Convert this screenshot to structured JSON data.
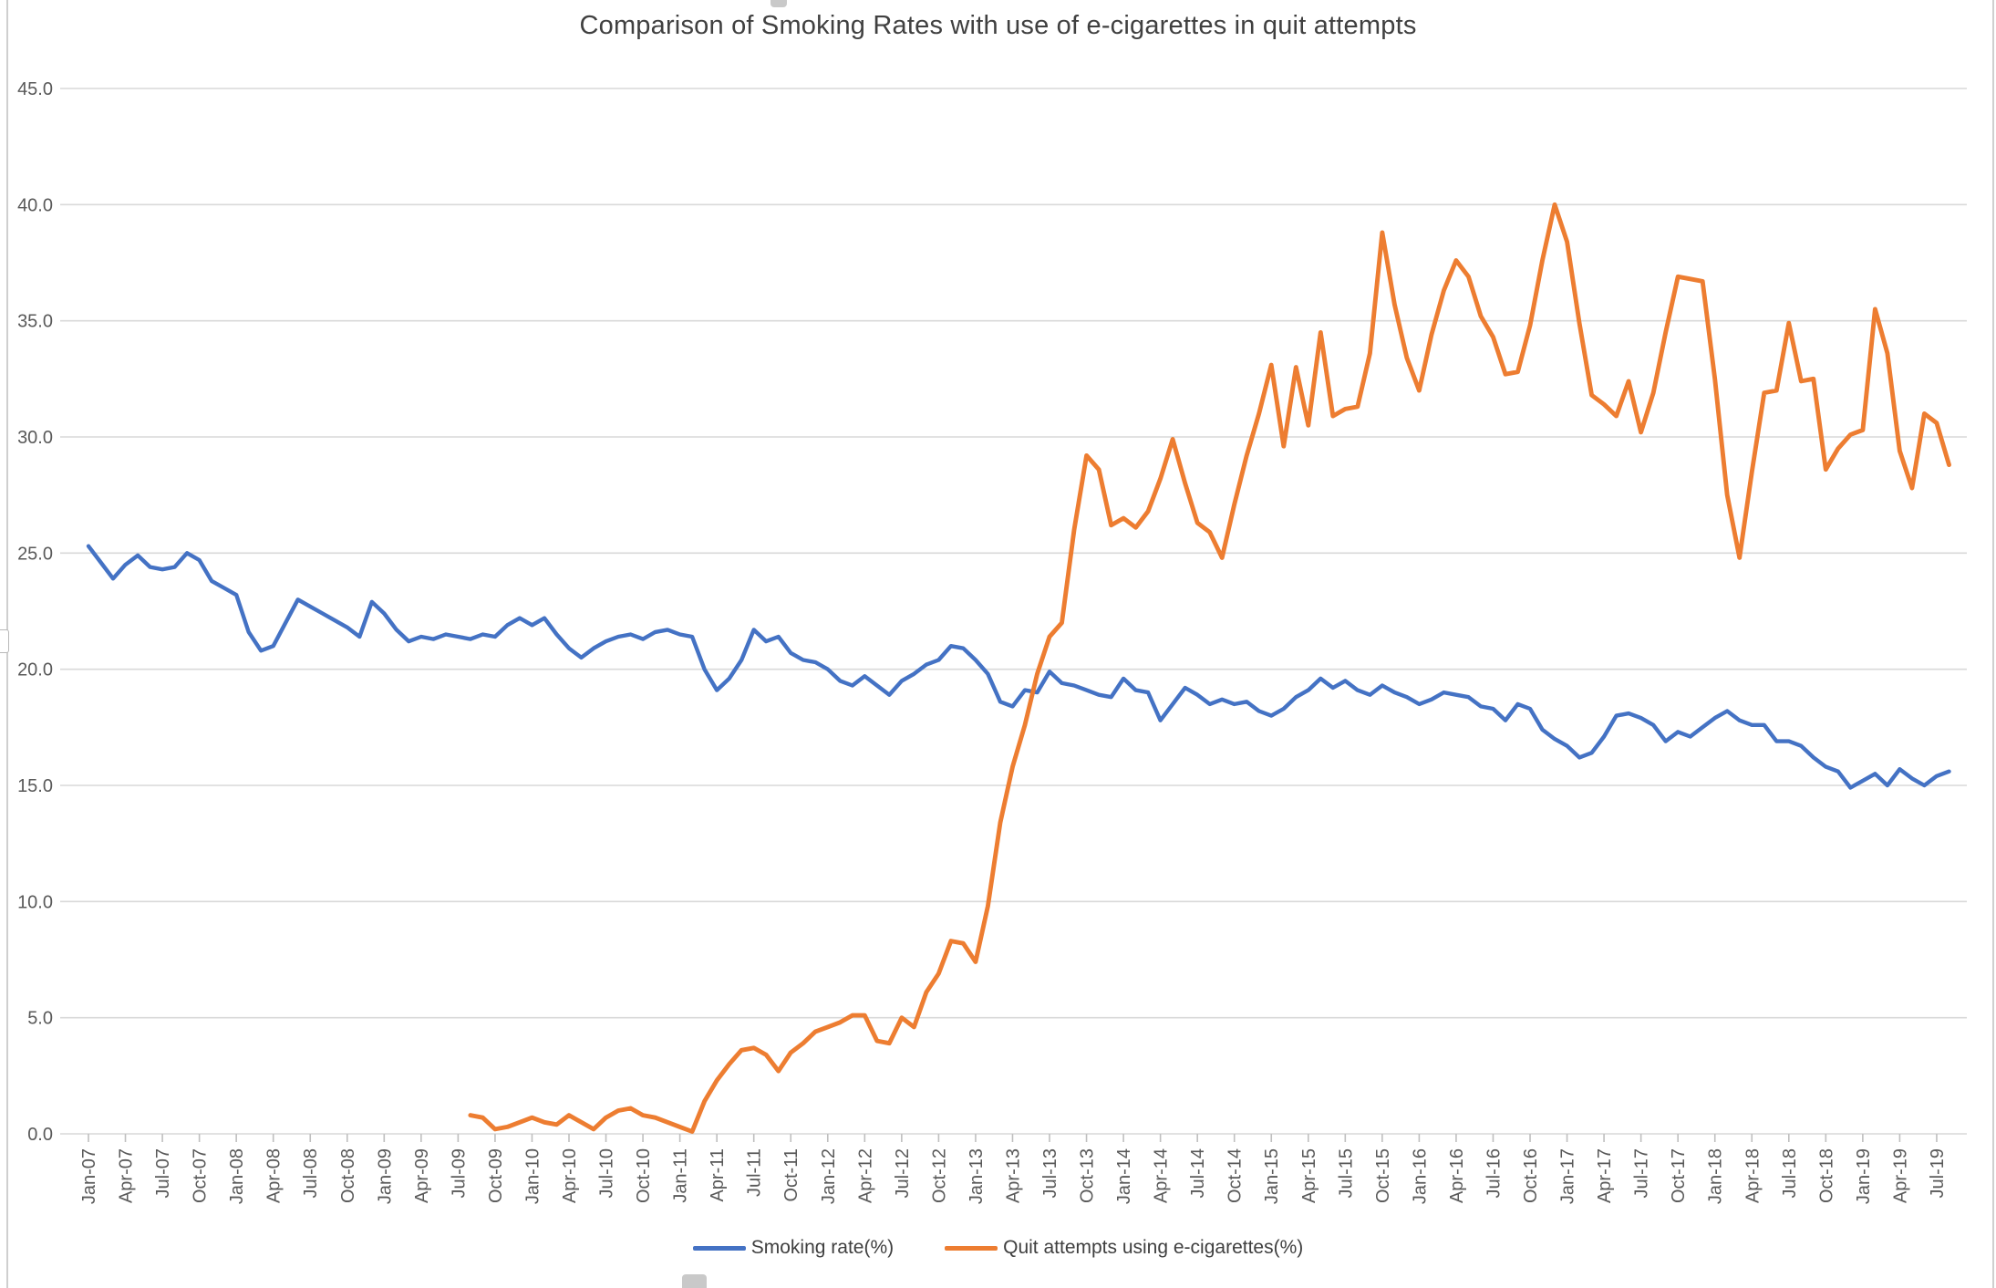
{
  "chart_data": {
    "type": "line",
    "title": "Comparison of Smoking Rates with use of e-cigarettes in quit attempts",
    "xlabel": "",
    "ylabel": "",
    "ylim": [
      0.0,
      45.0
    ],
    "grid": "horizontal",
    "legend_position": "bottom",
    "y_axis": {
      "ticks": [
        0,
        5,
        10,
        15,
        20,
        25,
        30,
        35,
        40,
        45
      ],
      "tick_labels": [
        "0.0",
        "5.0",
        "10.0",
        "15.0",
        "20.0",
        "25.0",
        "30.0",
        "35.0",
        "40.0",
        "45.0"
      ]
    },
    "x_axis": {
      "unit": "month",
      "monthly_points": 152,
      "first_month": "Jan-07",
      "last_month": "Aug-19",
      "labels": [
        "Jan-07",
        "Apr-07",
        "Jul-07",
        "Oct-07",
        "Jan-08",
        "Apr-08",
        "Jul-08",
        "Oct-08",
        "Jan-09",
        "Apr-09",
        "Jul-09",
        "Oct-09",
        "Jan-10",
        "Apr-10",
        "Jul-10",
        "Oct-10",
        "Jan-11",
        "Apr-11",
        "Jul-11",
        "Oct-11",
        "Jan-12",
        "Apr-12",
        "Jul-12",
        "Oct-12",
        "Jan-13",
        "Apr-13",
        "Jul-13",
        "Oct-13",
        "Jan-14",
        "Apr-14",
        "Jul-14",
        "Oct-14",
        "Jan-15",
        "Apr-15",
        "Jul-15",
        "Oct-15",
        "Jan-16",
        "Apr-16",
        "Jul-16",
        "Oct-16",
        "Jan-17",
        "Apr-17",
        "Jul-17",
        "Oct-17",
        "Jan-18",
        "Apr-18",
        "Jul-18",
        "Oct-18",
        "Jan-19",
        "Apr-19",
        "Jul-19"
      ],
      "label_every_n_months": 3
    },
    "series": [
      {
        "name": "Smoking rate(%)",
        "color": "#4472C4",
        "start_index": 0,
        "values": [
          25.3,
          24.6,
          23.9,
          24.5,
          24.9,
          24.4,
          24.3,
          24.4,
          25.0,
          24.7,
          23.8,
          23.5,
          23.2,
          21.6,
          20.8,
          21.0,
          22.0,
          23.0,
          22.7,
          22.4,
          22.1,
          21.8,
          21.4,
          22.9,
          22.4,
          21.7,
          21.2,
          21.4,
          21.3,
          21.5,
          21.4,
          21.3,
          21.5,
          21.4,
          21.9,
          22.2,
          21.9,
          22.2,
          21.5,
          20.9,
          20.5,
          20.9,
          21.2,
          21.4,
          21.5,
          21.3,
          21.6,
          21.7,
          21.5,
          21.4,
          20.0,
          19.1,
          19.6,
          20.4,
          21.7,
          21.2,
          21.4,
          20.7,
          20.4,
          20.3,
          20.0,
          19.5,
          19.3,
          19.7,
          19.3,
          18.9,
          19.5,
          19.8,
          20.2,
          20.4,
          21.0,
          20.9,
          20.4,
          19.8,
          18.6,
          18.4,
          19.1,
          19.0,
          19.9,
          19.4,
          19.3,
          19.1,
          18.9,
          18.8,
          19.6,
          19.1,
          19.0,
          17.8,
          18.5,
          19.2,
          18.9,
          18.5,
          18.7,
          18.5,
          18.6,
          18.2,
          18.0,
          18.3,
          18.8,
          19.1,
          19.6,
          19.2,
          19.5,
          19.1,
          18.9,
          19.3,
          19.0,
          18.8,
          18.5,
          18.7,
          19.0,
          18.9,
          18.8,
          18.4,
          18.3,
          17.8,
          18.5,
          18.3,
          17.4,
          17.0,
          16.7,
          16.2,
          16.4,
          17.1,
          18.0,
          18.1,
          17.9,
          17.6,
          16.9,
          17.3,
          17.1,
          17.5,
          17.9,
          18.2,
          17.8,
          17.6,
          17.6,
          16.9,
          16.9,
          16.7,
          16.2,
          15.8,
          15.6,
          14.9,
          15.2,
          15.5,
          15.0,
          15.7,
          15.3,
          15.0,
          15.4,
          15.6
        ]
      },
      {
        "name": "Quit attempts using e-cigarettes(%)",
        "color": "#ED7D31",
        "start_index": 31,
        "values": [
          0.8,
          0.7,
          0.2,
          0.3,
          0.5,
          0.7,
          0.5,
          0.4,
          0.8,
          0.5,
          0.2,
          0.7,
          1.0,
          1.1,
          0.8,
          0.7,
          0.5,
          0.3,
          0.1,
          1.4,
          2.3,
          3.0,
          3.6,
          3.7,
          3.4,
          2.7,
          3.5,
          3.9,
          4.4,
          4.6,
          4.8,
          5.1,
          5.1,
          4.0,
          3.9,
          5.0,
          4.6,
          6.1,
          6.9,
          8.3,
          8.2,
          7.4,
          9.8,
          13.4,
          15.8,
          17.6,
          19.8,
          21.4,
          22.0,
          26.0,
          29.2,
          28.6,
          26.2,
          26.5,
          26.1,
          26.8,
          28.2,
          29.9,
          28.0,
          26.3,
          25.9,
          24.8,
          27.1,
          29.2,
          31.0,
          33.1,
          29.6,
          33.0,
          30.5,
          34.5,
          30.9,
          31.2,
          31.3,
          33.6,
          38.8,
          35.7,
          33.4,
          32.0,
          34.4,
          36.3,
          37.6,
          36.9,
          35.2,
          34.3,
          32.7,
          32.8,
          34.8,
          37.6,
          40.0,
          38.4,
          34.9,
          31.8,
          31.4,
          30.9,
          32.4,
          30.2,
          31.9,
          34.5,
          36.9,
          36.8,
          36.7,
          32.5,
          27.5,
          24.8,
          28.5,
          31.9,
          32.0,
          34.9,
          32.4,
          32.5,
          28.6,
          29.5,
          30.1,
          30.3,
          35.5,
          33.6,
          29.4,
          27.8,
          31.0,
          30.6,
          28.8
        ]
      }
    ]
  },
  "colors": {
    "background": "#ffffff",
    "gridline": "#d9d9d9",
    "tick_mark": "#bfbfbf",
    "axis_text": "#595959",
    "title_text": "#404040",
    "legend_text": "#3f3f3f",
    "chrome_border": "#cfcfcf",
    "handle_fill": "#c9c9c9"
  }
}
